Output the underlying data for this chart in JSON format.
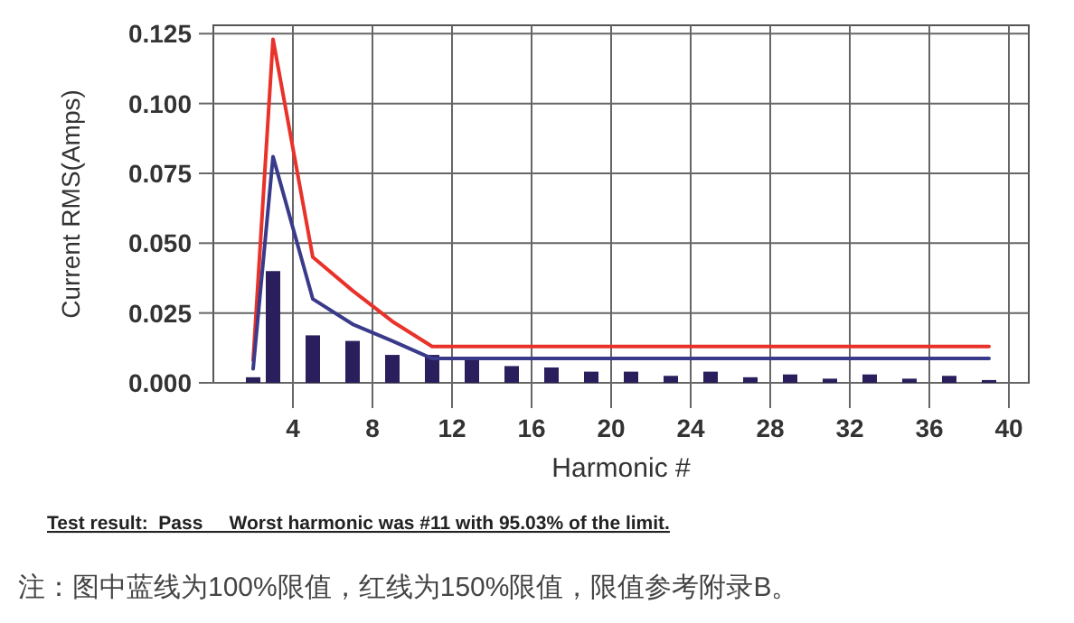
{
  "chart_data": {
    "type": "bar",
    "xlabel": "Harmonic #",
    "ylabel": "Current RMS(Amps)",
    "xlim": [
      0,
      41
    ],
    "ylim": [
      0,
      0.128
    ],
    "xticks": [
      4,
      8,
      12,
      16,
      20,
      24,
      28,
      32,
      36,
      40
    ],
    "yticks": [
      {
        "value": 0,
        "label": "0.000"
      },
      {
        "value": 0.025,
        "label": "0.025"
      },
      {
        "value": 0.05,
        "label": "0.050"
      },
      {
        "value": 0.075,
        "label": "0.075"
      },
      {
        "value": 0.1,
        "label": "0.100"
      },
      {
        "value": 0.125,
        "label": "0.125"
      }
    ],
    "grid": true,
    "series": [
      {
        "color": "#2a1f5c",
        "x": [
          2,
          3,
          5,
          7,
          9,
          11,
          13,
          15,
          17,
          19,
          21,
          23,
          25,
          27,
          29,
          31,
          33,
          35,
          37,
          39
        ],
        "values": [
          0.002,
          0.04,
          0.017,
          0.015,
          0.01,
          0.01,
          0.009,
          0.006,
          0.0055,
          0.004,
          0.004,
          0.0025,
          0.004,
          0.002,
          0.003,
          0.0015,
          0.003,
          0.0015,
          0.0025,
          0.001
        ]
      },
      {
        "type": "line",
        "color": "#e8322a",
        "x": [
          2,
          3,
          5,
          7,
          9,
          11,
          13,
          15,
          17,
          19,
          21,
          23,
          25,
          27,
          29,
          31,
          33,
          35,
          37,
          39
        ],
        "values": [
          0.008,
          0.123,
          0.045,
          0.033,
          0.022,
          0.013,
          0.013,
          0.013,
          0.013,
          0.013,
          0.013,
          0.013,
          0.013,
          0.013,
          0.013,
          0.013,
          0.013,
          0.013,
          0.013,
          0.013
        ]
      },
      {
        "type": "line",
        "color": "#3a3a8a",
        "x": [
          2,
          3,
          5,
          7,
          9,
          11,
          13,
          15,
          17,
          19,
          21,
          23,
          25,
          27,
          29,
          31,
          33,
          35,
          37,
          39
        ],
        "values": [
          0.005,
          0.081,
          0.03,
          0.021,
          0.015,
          0.0087,
          0.0087,
          0.0087,
          0.0087,
          0.0087,
          0.0087,
          0.0087,
          0.0087,
          0.0087,
          0.0087,
          0.0087,
          0.0087,
          0.0087,
          0.0087,
          0.0087
        ]
      }
    ],
    "annotations": [
      "**Test result:  Pass     Worst harmonic was #11 with 95.03% of the limit.**",
      "注：图中蓝线为100%限值，红线为150%限值，限值参考附录B。"
    ]
  }
}
